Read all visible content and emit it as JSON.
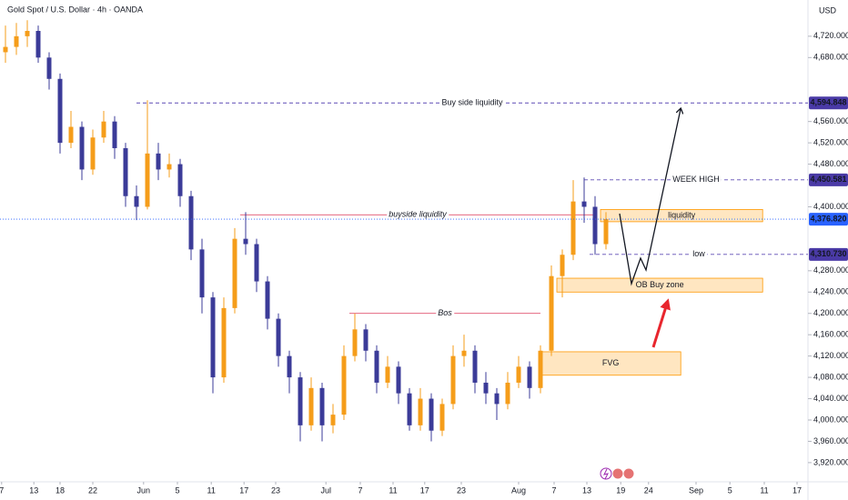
{
  "chart_data": {
    "type": "candlestick",
    "title": "Gold Spot / U.S. Dollar · 4h · OANDA",
    "currency": "USD",
    "up_color": "#f59d1a",
    "down_color": "#3b3b98",
    "grid": false,
    "xlim": [
      0,
      148
    ],
    "ylim": [
      3884,
      4788
    ],
    "xticks": [
      {
        "value": 0.3,
        "label": "7"
      },
      {
        "value": 6.2,
        "label": "13"
      },
      {
        "value": 11,
        "label": "18"
      },
      {
        "value": 17,
        "label": "22"
      },
      {
        "value": 26.3,
        "label": "Jun"
      },
      {
        "value": 32.5,
        "label": "5"
      },
      {
        "value": 38.7,
        "label": "11"
      },
      {
        "value": 44.7,
        "label": "17"
      },
      {
        "value": 50.5,
        "label": "23"
      },
      {
        "value": 59.7,
        "label": "Jul"
      },
      {
        "value": 66,
        "label": "7"
      },
      {
        "value": 72,
        "label": "11"
      },
      {
        "value": 77.8,
        "label": "17"
      },
      {
        "value": 84.5,
        "label": "23"
      },
      {
        "value": 95,
        "label": "Aug"
      },
      {
        "value": 101.5,
        "label": "7"
      },
      {
        "value": 107.5,
        "label": "13"
      },
      {
        "value": 113.7,
        "label": "19"
      },
      {
        "value": 118.8,
        "label": "24"
      },
      {
        "value": 127.5,
        "label": "Sep"
      },
      {
        "value": 133.7,
        "label": "5"
      },
      {
        "value": 140,
        "label": "11"
      },
      {
        "value": 146,
        "label": "17"
      }
    ],
    "yticks": [
      {
        "value": 4720,
        "label": "4,720.000"
      },
      {
        "value": 4680,
        "label": "4,680.000"
      },
      {
        "value": 4560,
        "label": "4,560.000"
      },
      {
        "value": 4520,
        "label": "4,520.000"
      },
      {
        "value": 4480,
        "label": "4,480.000"
      },
      {
        "value": 4400,
        "label": "4,400.000"
      },
      {
        "value": 4280,
        "label": "4,280.000"
      },
      {
        "value": 4240,
        "label": "4,240.000"
      },
      {
        "value": 4200,
        "label": "4,200.000"
      },
      {
        "value": 4160,
        "label": "4,160.000"
      },
      {
        "value": 4120,
        "label": "4,120.000"
      },
      {
        "value": 4080,
        "label": "4,080.000"
      },
      {
        "value": 4040,
        "label": "4,040.000"
      },
      {
        "value": 4000,
        "label": "4,000.000"
      },
      {
        "value": 3960,
        "label": "3,960.000"
      },
      {
        "value": 3920,
        "label": "3,920.000"
      }
    ],
    "candles": {
      "x": [
        1,
        3,
        5,
        7,
        9,
        11,
        13,
        15,
        17,
        19,
        21,
        23,
        25,
        27,
        29,
        31,
        33,
        35,
        37,
        39,
        41,
        43,
        45,
        47,
        49,
        51,
        53,
        55,
        57,
        59,
        61,
        63,
        65,
        67,
        69,
        71,
        73,
        75,
        77,
        79,
        81,
        83,
        85,
        87,
        89,
        91,
        93,
        95,
        97,
        99,
        101,
        103,
        105,
        107,
        109,
        111
      ],
      "open": [
        4690,
        4700,
        4720,
        4730,
        4680,
        4640,
        4520,
        4550,
        4470,
        4530,
        4560,
        4510,
        4420,
        4400,
        4500,
        4470,
        4480,
        4420,
        4320,
        4230,
        4080,
        4210,
        4340,
        4330,
        4260,
        4190,
        4120,
        4080,
        3990,
        4060,
        3990,
        4010,
        4120,
        4170,
        4130,
        4070,
        4100,
        4050,
        3990,
        4040,
        3980,
        4030,
        4120,
        4130,
        4070,
        4050,
        4030,
        4070,
        4100,
        4060,
        4130,
        4270,
        4310,
        4410,
        4400,
        4330
      ],
      "high": [
        4740,
        4745,
        4750,
        4740,
        4690,
        4650,
        4580,
        4560,
        4545,
        4580,
        4570,
        4520,
        4440,
        4600,
        4520,
        4500,
        4490,
        4430,
        4340,
        4240,
        4230,
        4360,
        4390,
        4340,
        4270,
        4200,
        4130,
        4090,
        4080,
        4070,
        4030,
        4140,
        4200,
        4180,
        4140,
        4120,
        4110,
        4060,
        4060,
        4050,
        4040,
        4140,
        4160,
        4140,
        4090,
        4060,
        4090,
        4120,
        4110,
        4140,
        4290,
        4320,
        4450,
        4455,
        4420,
        4390
      ],
      "low": [
        4670,
        4685,
        4700,
        4670,
        4620,
        4500,
        4510,
        4450,
        4460,
        4520,
        4490,
        4400,
        4375,
        4395,
        4450,
        4455,
        4400,
        4300,
        4200,
        4050,
        4070,
        4200,
        4310,
        4240,
        4170,
        4100,
        4050,
        3960,
        3980,
        3960,
        3975,
        4000,
        4110,
        4110,
        4050,
        4060,
        4030,
        3980,
        3980,
        3960,
        3970,
        4020,
        4100,
        4050,
        4030,
        4000,
        4020,
        4060,
        4040,
        4050,
        4120,
        4230,
        4300,
        4370,
        4310,
        4320
      ],
      "close": [
        4700,
        4720,
        4730,
        4680,
        4640,
        4520,
        4550,
        4470,
        4530,
        4560,
        4510,
        4420,
        4400,
        4500,
        4470,
        4480,
        4420,
        4320,
        4230,
        4080,
        4210,
        4340,
        4330,
        4260,
        4190,
        4120,
        4080,
        3990,
        4060,
        3990,
        4010,
        4120,
        4170,
        4130,
        4070,
        4100,
        4050,
        3990,
        4040,
        3980,
        4030,
        4120,
        4130,
        4070,
        4050,
        4030,
        4070,
        4100,
        4060,
        4130,
        4270,
        4310,
        4410,
        4400,
        4330,
        4377
      ]
    },
    "lines": [
      {
        "text": "Buy side liquidity",
        "value": 4594.848,
        "from": 25,
        "to": 148,
        "style": "dashed",
        "color": "#5e4bb5"
      },
      {
        "text": "WEEK HIGH",
        "value": 4450.581,
        "from": 107,
        "to": 148,
        "style": "dashed",
        "color": "#5e4bb5"
      },
      {
        "text": "low",
        "value": 4310.73,
        "from": 108,
        "to": 148,
        "style": "dashed",
        "color": "#5e4bb5"
      },
      {
        "text": "buyside liquidity",
        "value": 4385,
        "from": 44,
        "to": 109,
        "style": "solid",
        "color": "#e0506e"
      },
      {
        "text": "Bos",
        "value": 4200,
        "from": 64,
        "to": 99,
        "style": "solid",
        "color": "#e0506e"
      }
    ],
    "zones": [
      {
        "text": "liquidity",
        "low": 4372,
        "high": 4395,
        "from": 110,
        "to": 139.7
      },
      {
        "text": "OB Buy zone",
        "low": 4240,
        "high": 4266,
        "from": 102,
        "to": 139.7
      },
      {
        "text": "FVG",
        "low": 4084,
        "high": 4128,
        "from": 99,
        "to": 124.7
      }
    ],
    "price_labels": [
      {
        "value": 4594.848,
        "label": "4,594.848",
        "color": "#4a3aa6"
      },
      {
        "value": 4450.581,
        "label": "4,450.581",
        "color": "#4a3aa6"
      },
      {
        "value": 4376.82,
        "label": "4,376.820",
        "color": "#2962ff"
      },
      {
        "value": 4310.73,
        "label": "4,310.730",
        "color": "#4a3aa6"
      }
    ]
  }
}
